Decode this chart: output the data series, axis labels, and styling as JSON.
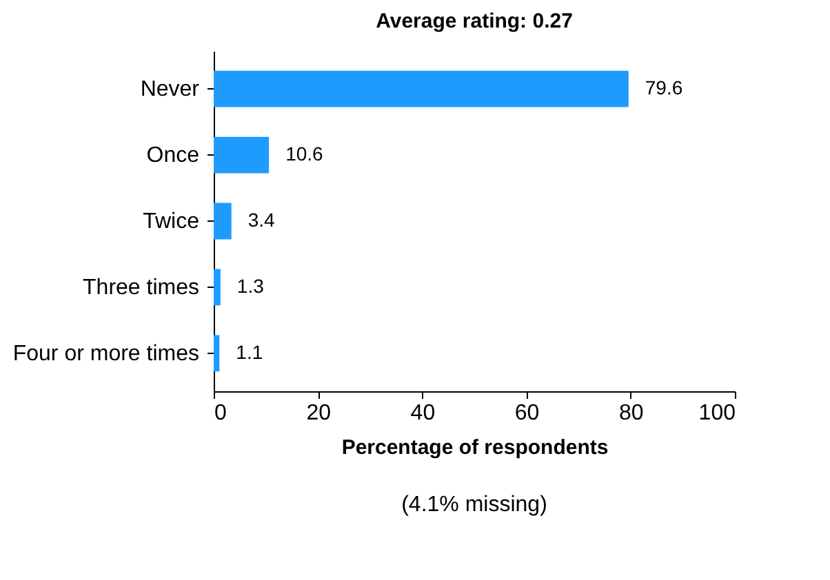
{
  "chart_data": {
    "type": "bar",
    "orientation": "horizontal",
    "title": "Average rating: 0.27",
    "xlabel": "Percentage of respondents",
    "categories": [
      "Never",
      "Once",
      "Twice",
      "Three times",
      "Four or more times"
    ],
    "values": [
      79.6,
      10.6,
      3.4,
      1.3,
      1.1
    ],
    "color": "#1e9bff",
    "xlim": [
      0,
      100
    ],
    "xticks": [
      0,
      20,
      40,
      60,
      80,
      100
    ],
    "grid": false,
    "data_labels": true,
    "annotations": [
      "(4.1% missing)"
    ]
  }
}
